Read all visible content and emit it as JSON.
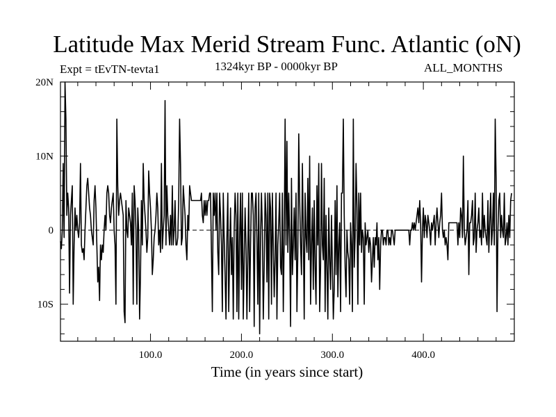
{
  "header": {
    "title": "Latitude Max Merid Stream Func. Atlantic (oN)",
    "experiment": "Expt = tEvTN-tevta1",
    "time_range": "1324kyr BP - 0000kyr BP",
    "months": "ALL_MONTHS"
  },
  "chart_data": {
    "type": "line",
    "title": "Latitude Max Merid Stream Func. Atlantic (oN)",
    "xlabel": "Time (in years since start)",
    "ylabel": "",
    "xlim": [
      1,
      500
    ],
    "ylim": [
      -15,
      20
    ],
    "x_ticks": [
      100,
      200,
      300,
      400
    ],
    "x_tick_labels": [
      "100.0",
      "200.0",
      "300.0",
      "400.0"
    ],
    "y_ticks": [
      20,
      10,
      0,
      -10
    ],
    "y_tick_labels": [
      "20N",
      "10N",
      "0",
      "10S"
    ],
    "zero_line": true,
    "series": [
      {
        "name": "latitude_max_stream_function",
        "x_start": 1,
        "x_step": 1,
        "values": [
          -1.5,
          -2.5,
          0,
          9,
          -1,
          20,
          15,
          2,
          5,
          3,
          -8.5,
          2,
          4,
          6,
          -10,
          -2,
          3,
          0,
          2,
          0,
          -1,
          1,
          9,
          -2,
          -3,
          -2.5,
          -4,
          0,
          3,
          6,
          7,
          5,
          3,
          2,
          0,
          -1,
          -2,
          4,
          6,
          3,
          -2,
          -7,
          -5,
          -9.5,
          -2,
          -4,
          -2,
          -3,
          0,
          2,
          0,
          5,
          6,
          5,
          2,
          1,
          3,
          4,
          5,
          0,
          -2,
          -10,
          15,
          6,
          2,
          4,
          5,
          4,
          3,
          2,
          -11,
          -12.5,
          4,
          0,
          -1,
          3,
          2,
          1,
          -2,
          5,
          -10,
          6,
          4,
          0,
          -10,
          3,
          0,
          -12,
          -6,
          4,
          -2,
          9,
          4,
          2,
          0,
          -3,
          -1,
          8,
          5,
          3,
          0,
          -6,
          -4,
          -1,
          0,
          2,
          5,
          3,
          -2,
          0,
          -3,
          9,
          -2.5,
          0,
          2,
          17.5,
          -2,
          6,
          2,
          0,
          -2,
          2,
          -2,
          6,
          -2,
          0,
          4,
          -2,
          -2,
          -1,
          4,
          15,
          9,
          -2,
          -1,
          6,
          4,
          2,
          -2,
          -4,
          2,
          0,
          6,
          5,
          4,
          4,
          4,
          4,
          4,
          4,
          4,
          4,
          4,
          4,
          4,
          5,
          2,
          1,
          4,
          2,
          4,
          2,
          4,
          4,
          5,
          5,
          -3,
          -11,
          5,
          2,
          5,
          0,
          5,
          -3,
          -6,
          5,
          2,
          -2,
          -11,
          5,
          -1,
          -6,
          -12,
          -1,
          5,
          -11,
          -3,
          3,
          -6,
          -1,
          -12,
          0,
          5,
          2,
          -11,
          5,
          -12,
          -1,
          5,
          -8,
          5,
          -12,
          -4,
          3,
          -2,
          -12,
          -3,
          5,
          -11,
          -2,
          5,
          5,
          2,
          -13,
          3,
          5,
          -1,
          -10,
          5,
          -14,
          -1,
          5,
          0,
          -12,
          -5,
          5,
          2,
          -7,
          5,
          -12,
          5,
          3,
          -10,
          5,
          -2,
          -9,
          -4,
          5,
          -12,
          -2,
          1,
          5,
          -5,
          -6,
          5,
          -11,
          -1,
          15,
          -2,
          12,
          -3,
          5,
          -1,
          -13,
          7,
          -6,
          -2,
          3,
          -4,
          5,
          -11,
          -3,
          13,
          4,
          -2,
          -6,
          9,
          0,
          -12,
          5,
          -1,
          -3,
          7,
          -4,
          10,
          -10,
          -2,
          3,
          -8,
          4,
          -5,
          -10,
          6,
          -2,
          9,
          -11,
          -5,
          9,
          -2,
          -4,
          7,
          -11,
          2,
          -5,
          -12,
          3,
          -4,
          -8,
          2,
          -5,
          -12,
          -8,
          4,
          -6,
          6,
          -9,
          -2,
          1,
          -11,
          5,
          5,
          15,
          2,
          -5,
          -9,
          0,
          -3,
          -4,
          -10,
          1,
          -2,
          -11,
          15,
          -5,
          -1,
          9,
          3,
          -10,
          5,
          -2,
          5,
          -3,
          0,
          -1,
          -10,
          1,
          -2,
          -1,
          0,
          -3,
          -1,
          -2,
          -7,
          -4,
          -1,
          -5,
          -1,
          -2,
          1,
          -4,
          -1,
          -8,
          -2,
          0,
          0,
          -2,
          -1,
          -1,
          -2,
          0,
          0,
          -2,
          -1,
          -2,
          0,
          0,
          -1,
          -2,
          0,
          0,
          0,
          0,
          0,
          0,
          0,
          0,
          0,
          0,
          0,
          0,
          0,
          0,
          0,
          0,
          -2,
          0,
          0,
          1,
          0,
          1,
          0,
          1,
          2,
          3,
          1,
          4,
          1,
          -7,
          0,
          3,
          -1,
          2,
          1,
          -1,
          2,
          1,
          0,
          -2,
          1,
          0,
          1,
          2,
          -2,
          1,
          3,
          1,
          -1,
          1,
          2,
          5,
          0,
          -1,
          0,
          -2,
          -1,
          -2,
          -4,
          1,
          1,
          1,
          1,
          1,
          1,
          1,
          1,
          1,
          1,
          -2,
          1,
          -1,
          3,
          2,
          -1,
          10,
          0,
          -2,
          -1,
          0,
          4,
          -6,
          1,
          1,
          2,
          4,
          -2,
          -1,
          5,
          -3,
          0,
          1,
          3,
          -1,
          0,
          -2,
          5,
          -1,
          2,
          0,
          -1,
          -2,
          4,
          -3,
          1,
          5,
          -2,
          0,
          5,
          -2,
          15,
          7,
          -11,
          0,
          4,
          5,
          -1,
          2,
          0,
          -1,
          5,
          -2,
          -1,
          1,
          -2,
          2,
          -1,
          4,
          5
        ]
      }
    ]
  }
}
